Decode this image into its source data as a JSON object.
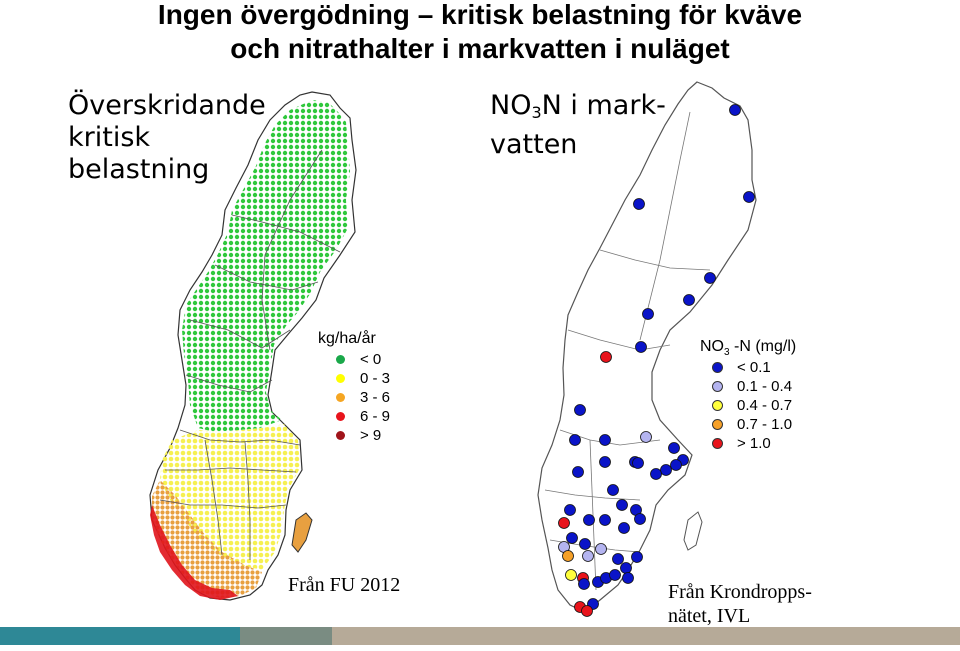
{
  "title": {
    "line1": "Ingen övergödning – kritisk belastning för kväve",
    "line2": "och nitrathalter i markvatten i nuläget"
  },
  "left_map": {
    "label_lines": [
      "Överskridande",
      "kritisk",
      "belastning"
    ],
    "legend_title": "kg/ha/år",
    "legend": [
      {
        "label": "< 0",
        "color": "#1aa84a"
      },
      {
        "label": "0 - 3",
        "color": "#ffff00"
      },
      {
        "label": "3 - 6",
        "color": "#f5a623"
      },
      {
        "label": "6 - 9",
        "color": "#e8141c"
      },
      {
        "label": "> 9",
        "color": "#a0141a"
      }
    ],
    "source": "Från FU 2012"
  },
  "right_map": {
    "label_main": "NO",
    "label_sub": "3",
    "label_rest": "N i mark-",
    "label_line2": "vatten",
    "legend_title_main": "NO",
    "legend_title_sub": "3",
    "legend_title_rest": "-N (mg/l)",
    "legend": [
      {
        "label": "< 0.1",
        "color": "#0a14c8"
      },
      {
        "label": "0.1 - 0.4",
        "color": "#b4b4f0"
      },
      {
        "label": "0.4 - 0.7",
        "color": "#ffff3c"
      },
      {
        "label": "0.7 - 1.0",
        "color": "#f5a028"
      },
      {
        "label": "> 1.0",
        "color": "#e8141c"
      }
    ],
    "source_line1": "Från Krondropps-",
    "source_line2": "nätet, IVL"
  },
  "colors": {
    "bar_teal": "#2e8896",
    "bar_grey": "#7a8c82",
    "bar_tan": "#b6aa98"
  }
}
